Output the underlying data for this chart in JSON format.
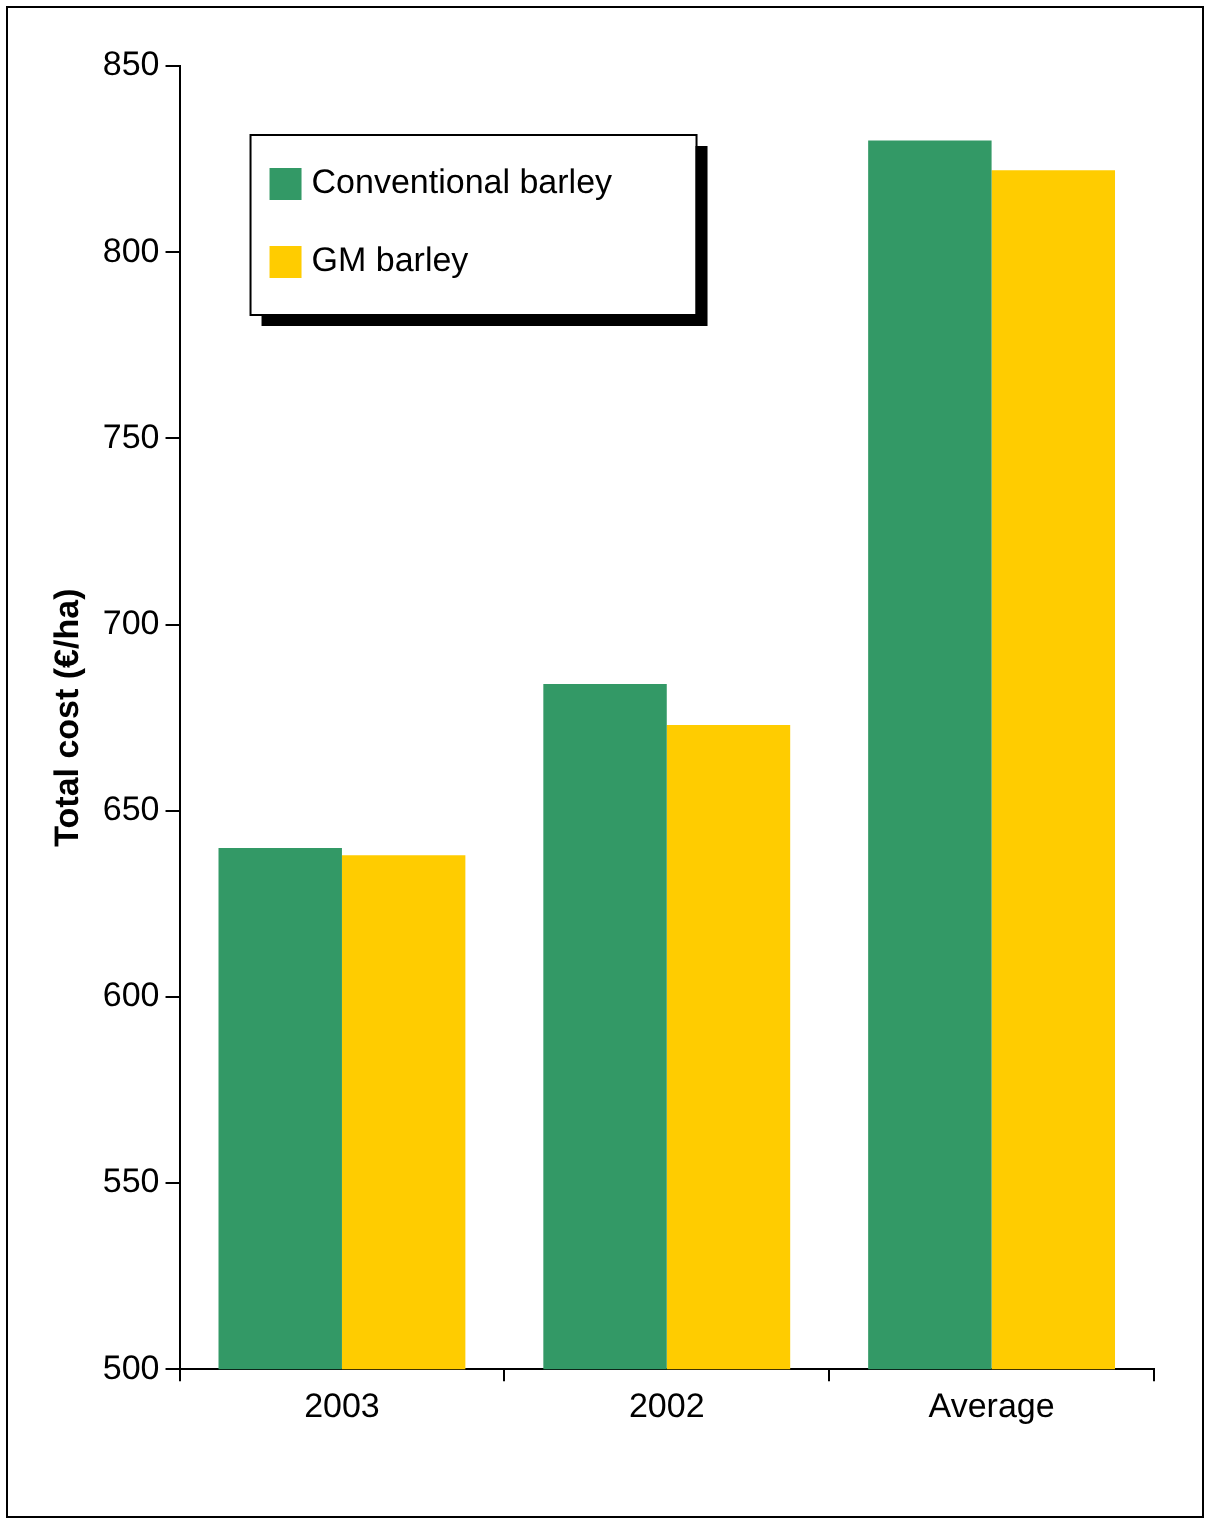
{
  "chart_data": {
    "type": "bar",
    "ylabel": "Total cost (€/ha)",
    "categories": [
      "2003",
      "2002",
      "Average"
    ],
    "series": [
      {
        "name": "Conventional barley",
        "color": "#339966",
        "values": [
          640,
          684,
          830
        ]
      },
      {
        "name": "GM barley",
        "color": "#ffcc00",
        "values": [
          638,
          673,
          822
        ]
      }
    ],
    "ylim": [
      500,
      850
    ],
    "yticks": [
      500,
      550,
      600,
      650,
      700,
      750,
      800,
      850
    ],
    "grid": false,
    "legend": "top left"
  }
}
